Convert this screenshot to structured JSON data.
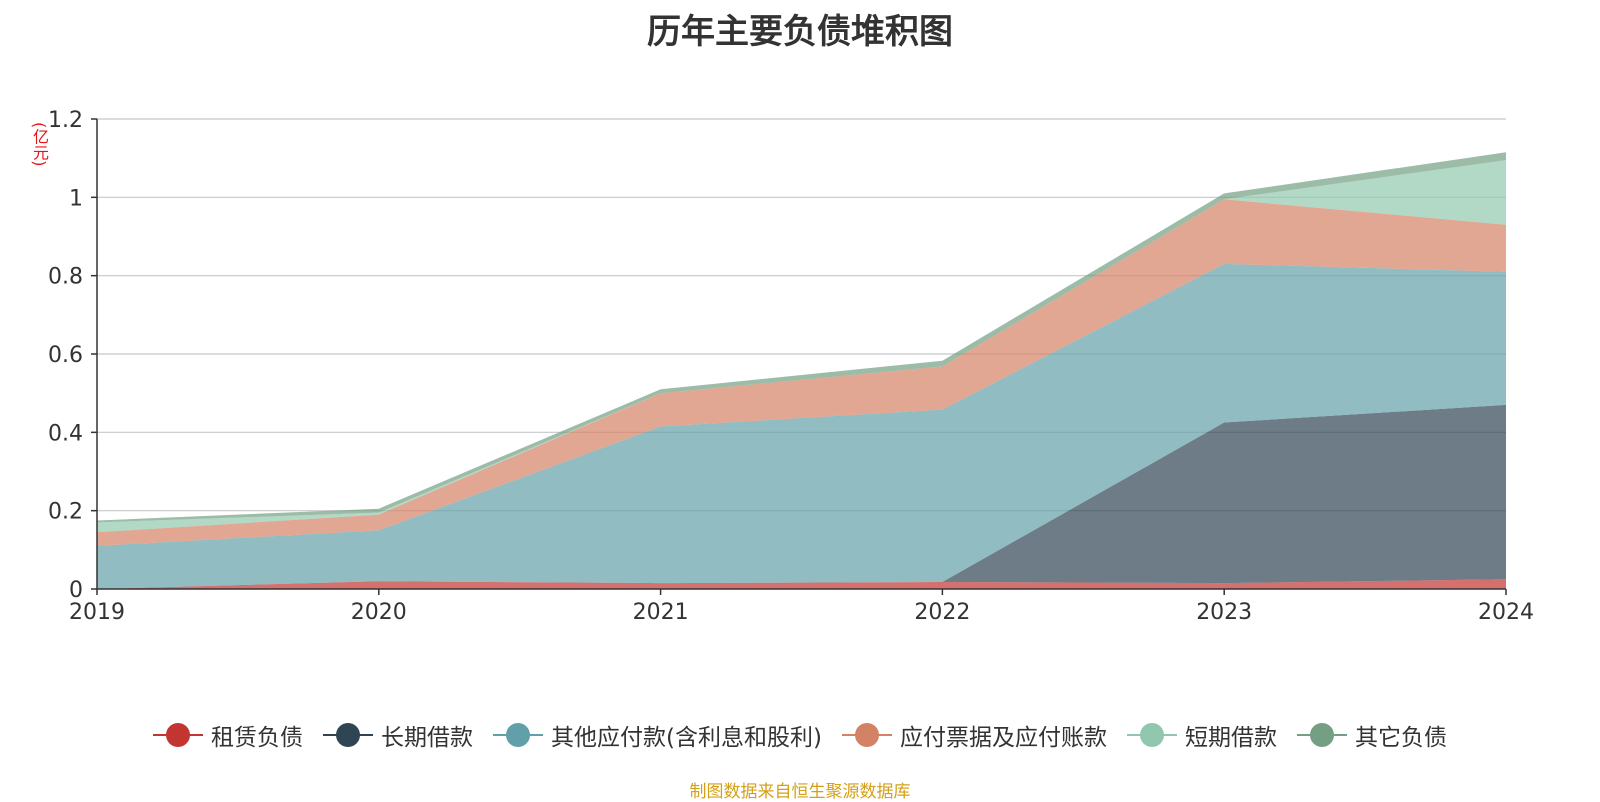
{
  "chart_data": {
    "type": "area",
    "stacked": true,
    "title": "历年主要负债堆积图",
    "unit_label": "(亿元)",
    "x": [
      "2019",
      "2020",
      "2021",
      "2022",
      "2023",
      "2024"
    ],
    "ylim": [
      0,
      1.2
    ],
    "yticks": [
      0,
      0.2,
      0.4,
      0.6,
      0.8,
      1,
      1.2
    ],
    "ytick_labels": [
      "0",
      "0.2",
      "0.4",
      "0.6",
      "0.8",
      "1",
      "1.2"
    ],
    "grid": true,
    "legend_position": "bottom",
    "series": [
      {
        "name": "租赁负债",
        "color": "#c23531",
        "values": [
          0.0,
          0.02,
          0.015,
          0.018,
          0.015,
          0.025
        ]
      },
      {
        "name": "长期借款",
        "color": "#2f4554",
        "values": [
          0.0,
          0.0,
          0.0,
          0.0,
          0.41,
          0.445
        ]
      },
      {
        "name": "其他应付款(含利息和股利)",
        "color": "#61a0a8",
        "values": [
          0.11,
          0.13,
          0.4,
          0.44,
          0.405,
          0.34
        ]
      },
      {
        "name": "应付票据及应付账款",
        "color": "#d48265",
        "values": [
          0.035,
          0.04,
          0.085,
          0.11,
          0.165,
          0.12
        ]
      },
      {
        "name": "短期借款",
        "color": "#91c7ae",
        "values": [
          0.025,
          0.005,
          0.0,
          0.0,
          0.0,
          0.165
        ]
      },
      {
        "name": "其它负债",
        "color": "#749f83",
        "values": [
          0.005,
          0.01,
          0.01,
          0.015,
          0.015,
          0.02
        ]
      }
    ]
  },
  "source_note": "制图数据来自恒生聚源数据库"
}
